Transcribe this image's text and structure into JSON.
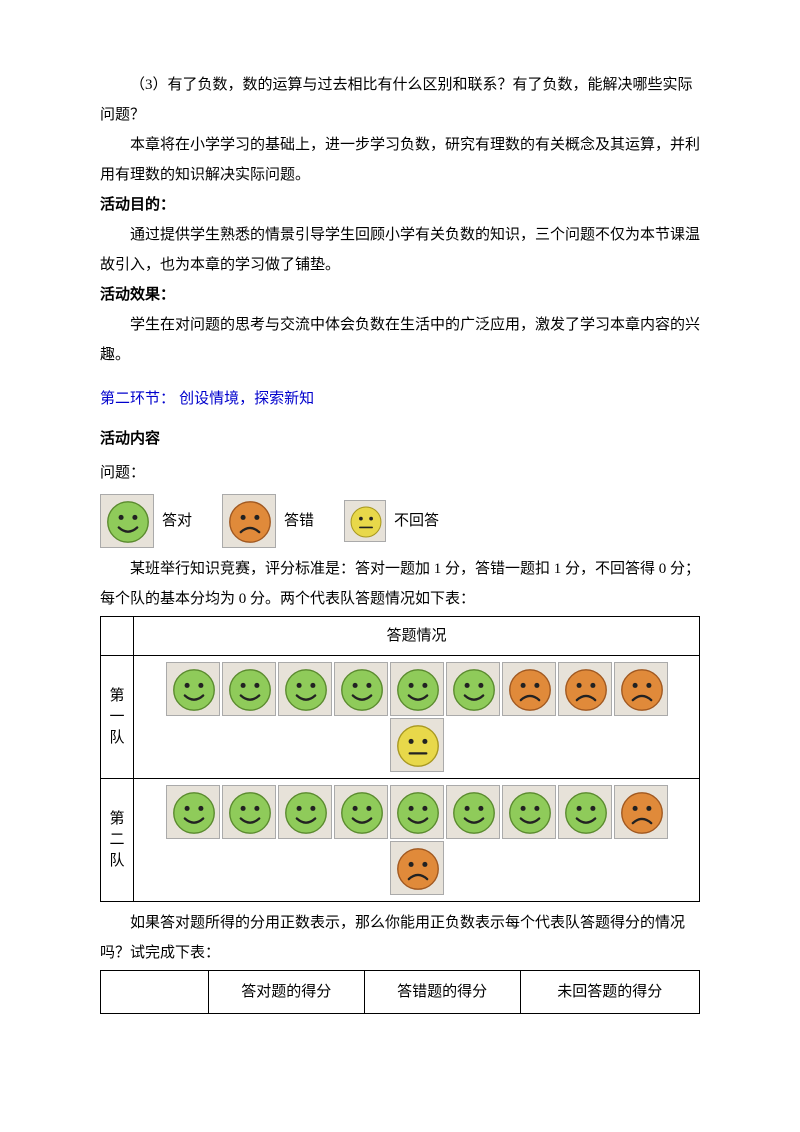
{
  "text": {
    "p1": "（3）有了负数，数的运算与过去相比有什么区别和联系？有了负数，能解决哪些实际问题？",
    "p2": "本章将在小学学习的基础上，进一步学习负数，研究有理数的有关概念及其运算，并利用有理数的知识解决实际问题。",
    "h_goal": "活动目的：",
    "p3": "通过提供学生熟悉的情景引导学生回顾小学有关负数的知识，三个问题不仅为本节课温故引入，也为本章的学习做了铺垫。",
    "h_effect": "活动效果：",
    "p4": "学生在对问题的思考与交流中体会负数在生活中的广泛应用，激发了学习本章内容的兴趣。",
    "section2": "第二环节：  创设情境，探索新知",
    "h_content": "活动内容",
    "question": "问题：",
    "legend": {
      "correct": "答对",
      "wrong": "答错",
      "noanswer": "不回答"
    },
    "p5a": "某班举行知识竞赛，评分标准是：答对一题加 1 分，答错一题扣 1 分，不回答得 0 分；每个队的基本分均为 0 分。两个代表队答题情况如下表：",
    "table1_header": "答题情况",
    "team1_label": "第\n一\n队",
    "team2_label": "第\n二\n队",
    "p6": "如果答对题所得的分用正数表示，那么你能用正负数表示每个代表队答题得分的情况吗？试完成下表：",
    "score_headers": [
      "",
      "答对题的得分",
      "答错题的得分",
      "未回答题的得分"
    ]
  },
  "colors": {
    "happy_fill": "#8fcb5a",
    "happy_stroke": "#5a8a2e",
    "sad_fill": "#e08a3a",
    "sad_stroke": "#a05820",
    "neutral_fill": "#e8d84a",
    "neutral_stroke": "#a89820",
    "face_feature": "#222222",
    "tile_bg": "#e7e2d9",
    "tile_border": "#aaaaaa"
  },
  "faces": {
    "legend": [
      "happy",
      "sad",
      "neutral"
    ],
    "legend_size": 54,
    "team_size": 46,
    "team1": [
      "happy",
      "happy",
      "happy",
      "happy",
      "happy",
      "happy",
      "sad",
      "sad",
      "sad",
      "neutral"
    ],
    "team2_row1": [
      "happy",
      "happy",
      "happy",
      "happy",
      "happy",
      "happy",
      "happy",
      "happy",
      "sad"
    ],
    "team2_row2": [
      "sad"
    ]
  }
}
